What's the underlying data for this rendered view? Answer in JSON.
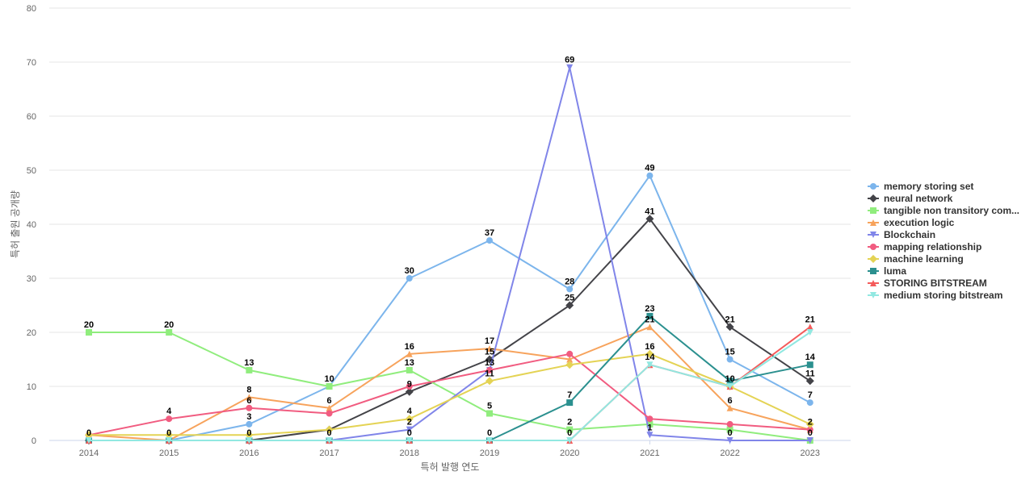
{
  "chart_data": {
    "type": "line",
    "title": "",
    "xlabel": "특허 발행 연도",
    "ylabel": "특허 출원 공개량",
    "x": [
      "2014",
      "2015",
      "2016",
      "2017",
      "2018",
      "2019",
      "2020",
      "2021",
      "2022",
      "2023"
    ],
    "ylim": [
      0,
      80
    ],
    "yticks": [
      "0",
      "10",
      "20",
      "30",
      "40",
      "50",
      "60",
      "70",
      "80"
    ],
    "grid": "horizontal",
    "legend_position": "right",
    "series": [
      {
        "name": "memory storing set",
        "color": "#7cb5ec",
        "marker": "circle",
        "values": [
          0,
          0,
          3,
          10,
          30,
          37,
          28,
          49,
          15,
          7
        ],
        "labels": [
          "",
          "",
          "3",
          "10",
          "30",
          "37",
          "28",
          "49",
          "15",
          "7"
        ]
      },
      {
        "name": "neural network",
        "color": "#434348",
        "marker": "diamond",
        "values": [
          0,
          0,
          0,
          2,
          9,
          15,
          25,
          41,
          21,
          11
        ],
        "labels": [
          "",
          "",
          "",
          "",
          "9",
          "15",
          "25",
          "41",
          "21",
          "11"
        ]
      },
      {
        "name": "tangible non transitory com...",
        "color": "#90ed7d",
        "marker": "square",
        "values": [
          20,
          20,
          13,
          10,
          13,
          5,
          2,
          3,
          2,
          0
        ],
        "labels": [
          "20",
          "20",
          "13",
          "",
          "13",
          "5",
          "2",
          "",
          "",
          ""
        ]
      },
      {
        "name": "execution logic",
        "color": "#f7a35c",
        "marker": "triangle",
        "values": [
          1,
          0,
          8,
          6,
          16,
          17,
          15,
          21,
          6,
          2
        ],
        "labels": [
          "",
          "0",
          "8",
          "6",
          "16",
          "17",
          "",
          "21",
          "6",
          "2"
        ]
      },
      {
        "name": "Blockchain",
        "color": "#8085e9",
        "marker": "triangle-down",
        "values": [
          0,
          0,
          0,
          0,
          2,
          13,
          69,
          1,
          0,
          0
        ],
        "labels": [
          "",
          "",
          "",
          "",
          "2",
          "13",
          "69",
          "1",
          "0",
          "0"
        ]
      },
      {
        "name": "mapping relationship",
        "color": "#f15c80",
        "marker": "circle",
        "values": [
          1,
          4,
          6,
          5,
          10,
          13,
          16,
          4,
          3,
          2
        ],
        "labels": [
          "",
          "4",
          "6",
          "",
          "",
          "",
          "",
          "",
          "",
          ""
        ]
      },
      {
        "name": "machine learning",
        "color": "#e4d354",
        "marker": "diamond",
        "values": [
          1,
          1,
          1,
          2,
          4,
          11,
          14,
          16,
          10,
          3
        ],
        "labels": [
          "",
          "",
          "",
          "",
          "4",
          "11",
          "",
          "16",
          "",
          ""
        ]
      },
      {
        "name": "luma",
        "color": "#2b908f",
        "marker": "square",
        "values": [
          0,
          0,
          0,
          0,
          0,
          0,
          7,
          23,
          11,
          14
        ],
        "labels": [
          "",
          "",
          "",
          "",
          "",
          "",
          "7",
          "23",
          "",
          "14"
        ]
      },
      {
        "name": "STORING BITSTREAM",
        "color": "#f45b5b",
        "marker": "triangle",
        "values": [
          0,
          0,
          0,
          0,
          0,
          0,
          0,
          14,
          10,
          21
        ],
        "labels": [
          "",
          "",
          "",
          "",
          "",
          "",
          "",
          "",
          "",
          "21"
        ]
      },
      {
        "name": "medium storing bitstream",
        "color": "#91e8e1",
        "marker": "triangle-down",
        "values": [
          0,
          0,
          0,
          0,
          0,
          0,
          0,
          14,
          10,
          20
        ],
        "labels": [
          "0",
          "",
          "0",
          "0",
          "0",
          "0",
          "0",
          "14",
          "10",
          ""
        ]
      }
    ]
  }
}
